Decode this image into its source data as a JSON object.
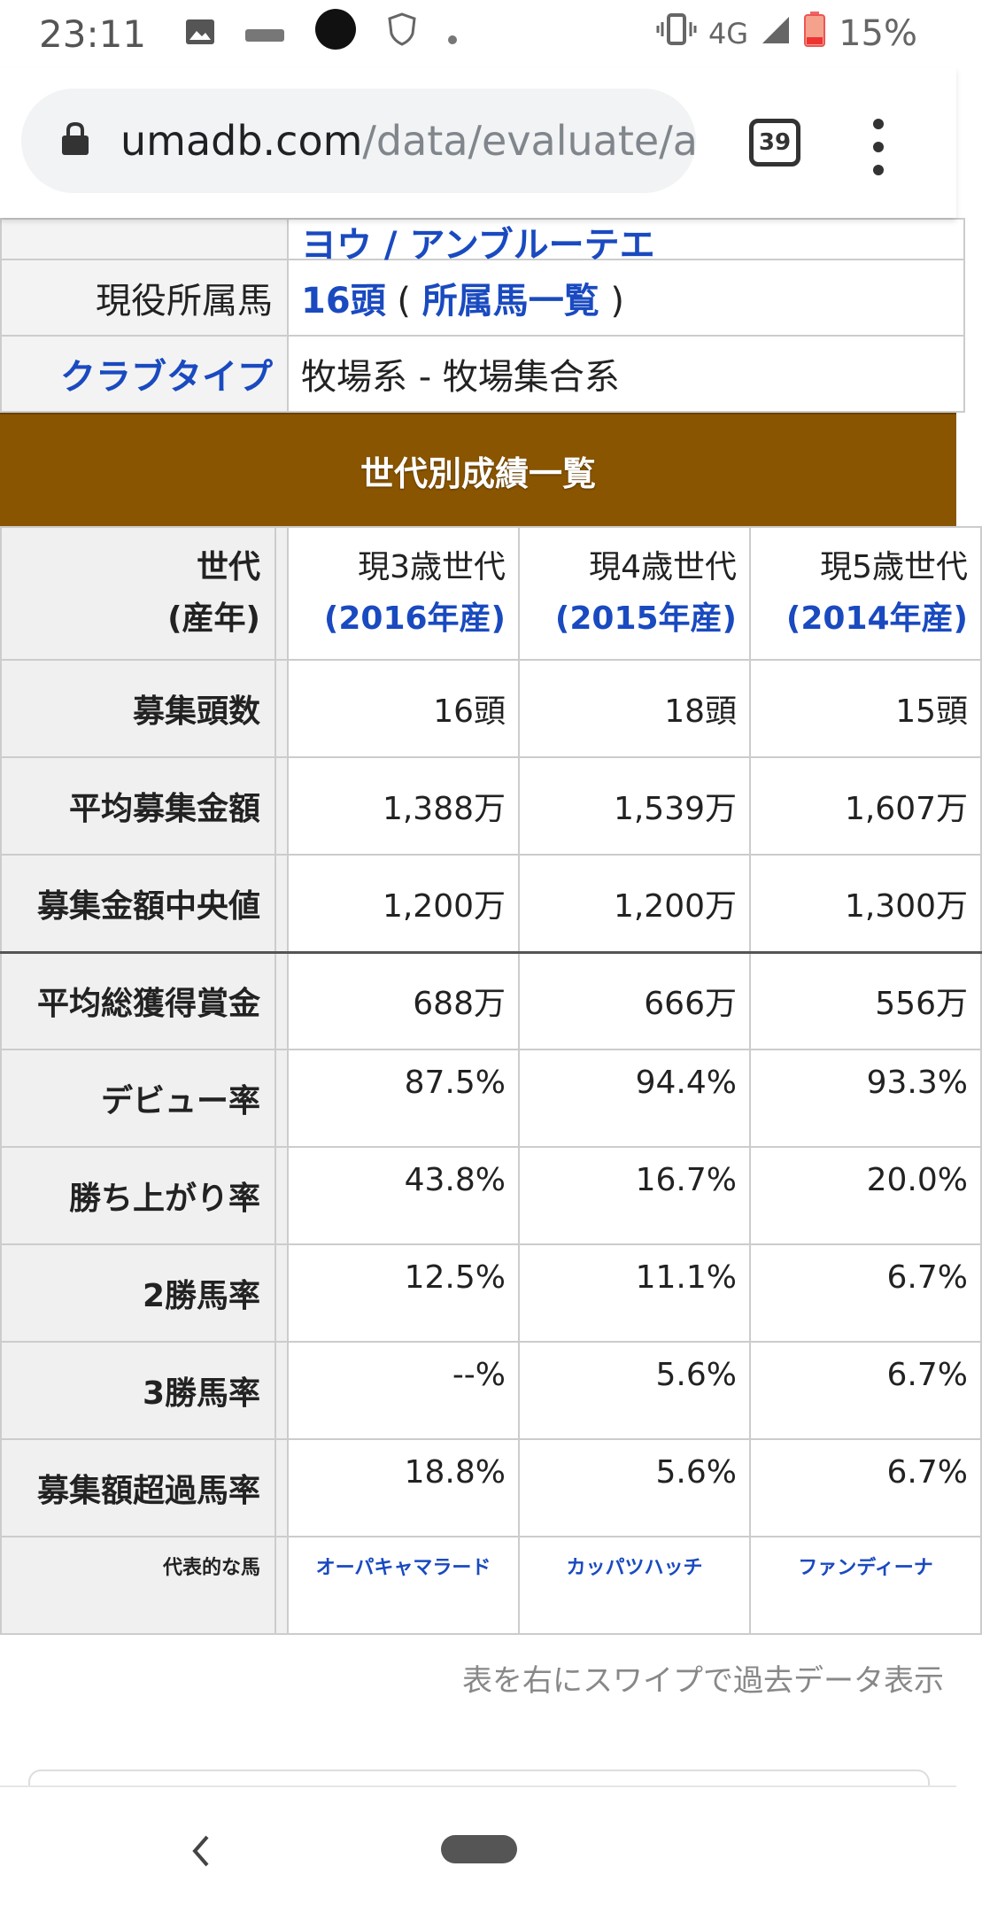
{
  "status": {
    "time": "23:11",
    "network": "4G",
    "battery": "15%"
  },
  "browser": {
    "url_host": "umadb.com",
    "url_path": "/data/evaluate/a",
    "tab_count": "39"
  },
  "info": {
    "partial_row_text": "ヨウ / アンブルーテエ",
    "active_label": "現役所属馬",
    "active_count": "16頭",
    "active_open": " ( ",
    "active_link": "所属馬一覧",
    "active_close": " )",
    "club_type_label": "クラブタイプ",
    "club_type_value": "牧場系 - 牧場集合系"
  },
  "section_title": "世代別成績一覧",
  "table": {
    "header_label_1": "世代",
    "header_label_2": "(産年)",
    "columns": [
      {
        "gen": "現3歳世代",
        "year": "(2016年産)"
      },
      {
        "gen": "現4歳世代",
        "year": "(2015年産)"
      },
      {
        "gen": "現5歳世代",
        "year": "(2014年産)"
      }
    ],
    "rows": [
      {
        "label": "募集頭数",
        "values": [
          "16頭",
          "18頭",
          "15頭"
        ]
      },
      {
        "label": "平均募集金額",
        "values": [
          "1,388万",
          "1,539万",
          "1,607万"
        ]
      },
      {
        "label": "募集金額中央値",
        "values": [
          "1,200万",
          "1,200万",
          "1,300万"
        ]
      },
      {
        "label": "平均総獲得賞金",
        "values": [
          "688万",
          "666万",
          "556万"
        ]
      },
      {
        "label": "デビュー率",
        "values": [
          "87.5%",
          "94.4%",
          "93.3%"
        ]
      },
      {
        "label": "勝ち上がり率",
        "values": [
          "43.8%",
          "16.7%",
          "20.0%"
        ]
      },
      {
        "label": "2勝馬率",
        "values": [
          "12.5%",
          "11.1%",
          "6.7%"
        ]
      },
      {
        "label": "3勝馬率",
        "values": [
          "--%",
          "5.6%",
          "6.7%"
        ]
      },
      {
        "label": "募集額超過馬率",
        "values": [
          "18.8%",
          "5.6%",
          "6.7%"
        ]
      }
    ],
    "rep_label": "代表的な馬",
    "rep_horses": [
      "オーパキャマラード",
      "カッパツハッチ",
      "ファンディーナ"
    ]
  },
  "swipe_note": "表を右にスワイプで過去データ表示"
}
